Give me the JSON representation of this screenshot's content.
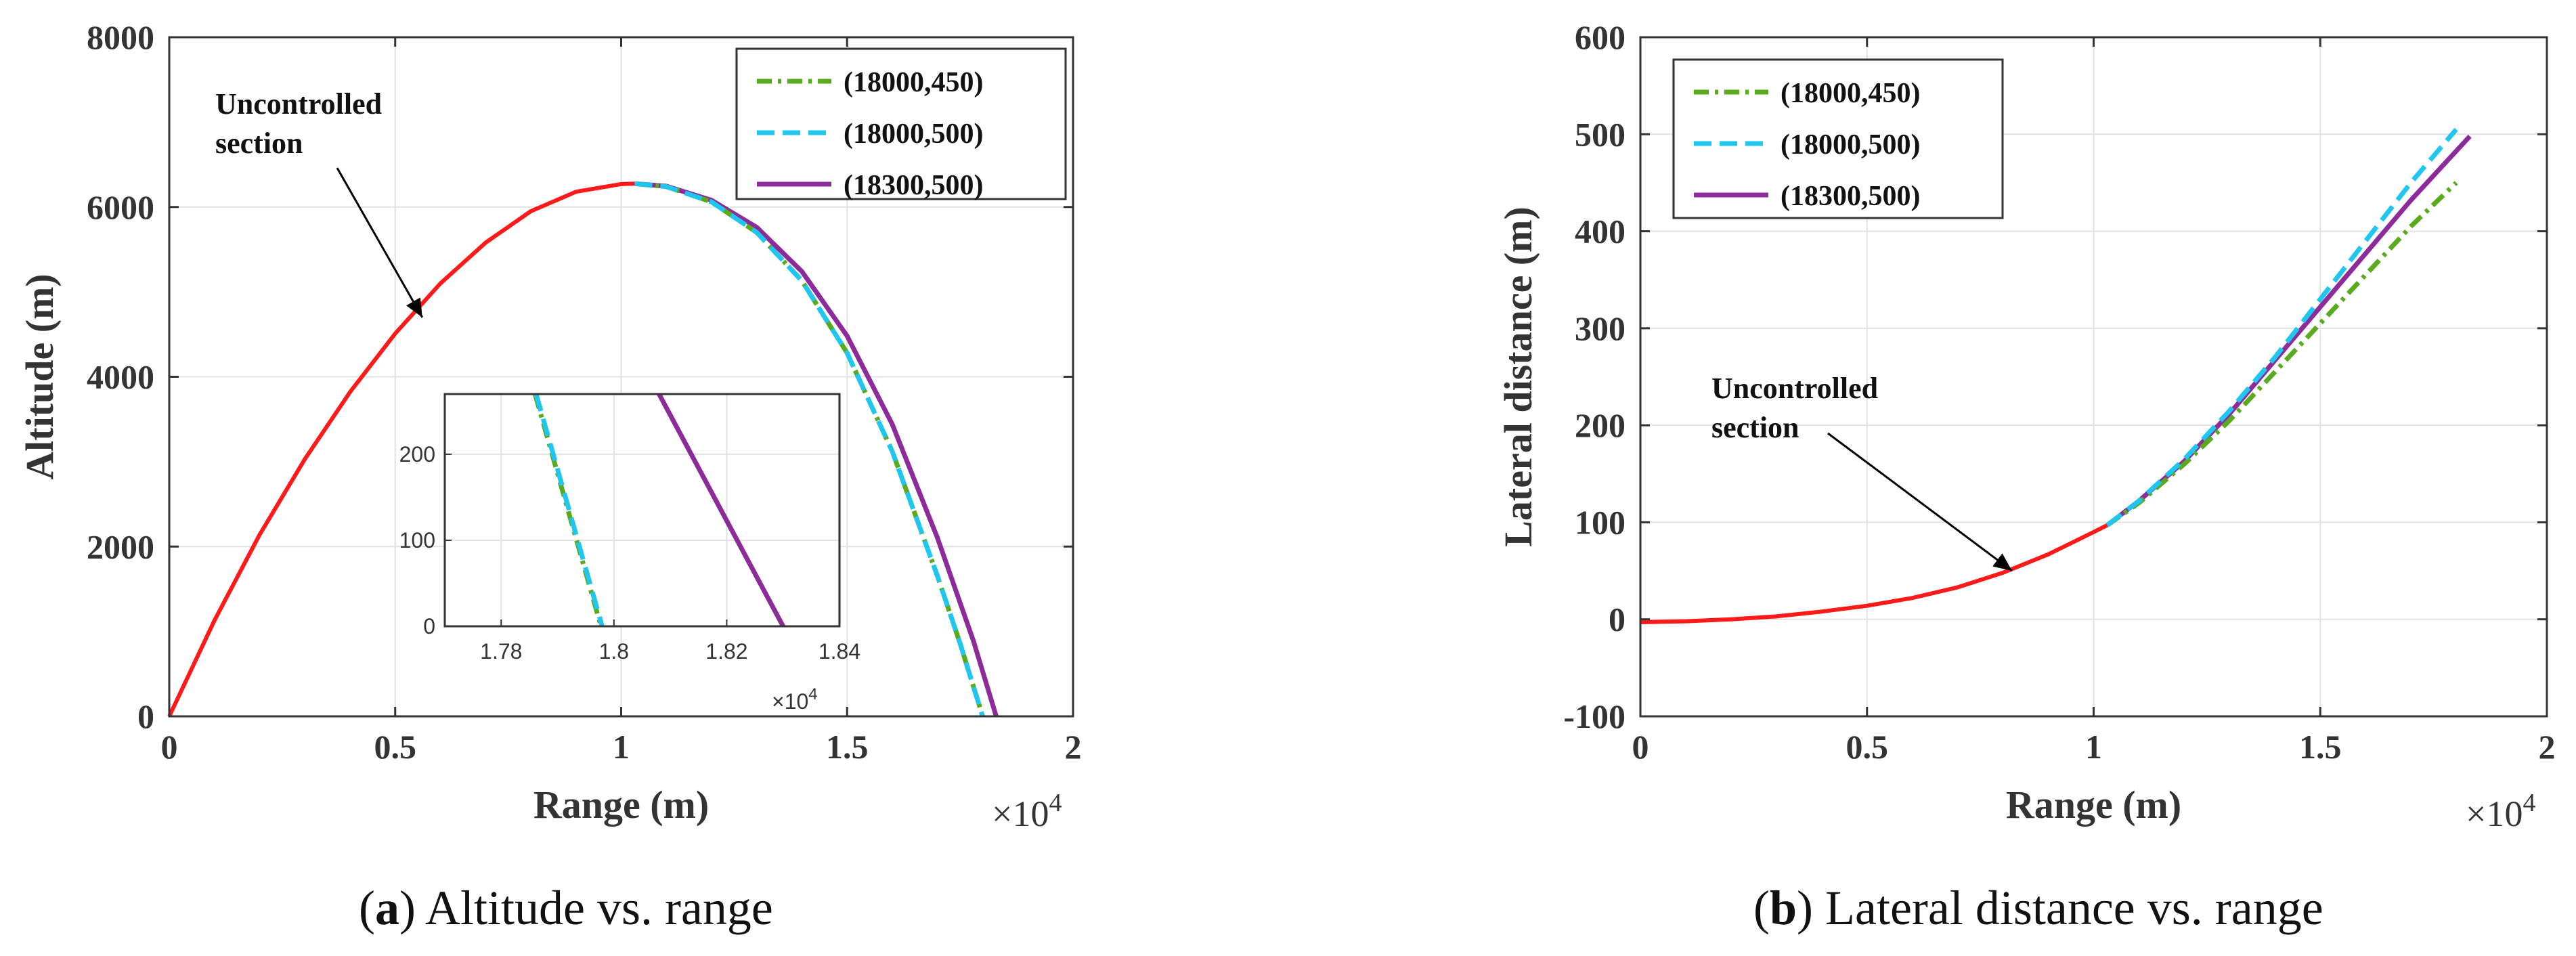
{
  "chart_data": [
    {
      "type": "line",
      "title": "",
      "xlabel": "Range (m)",
      "ylabel": "Altitude (m)",
      "xlim": [
        0,
        20000
      ],
      "ylim": [
        0,
        8000
      ],
      "xticks": [
        0,
        5000,
        10000,
        15000,
        20000
      ],
      "xtick_labels": [
        "0",
        "0.5",
        "1",
        "1.5",
        "2"
      ],
      "yticks": [
        0,
        2000,
        4000,
        6000,
        8000
      ],
      "ytick_labels": [
        "0",
        "2000",
        "4000",
        "6000",
        "8000"
      ],
      "x_exponent": "×10",
      "x_exponent_power": "4",
      "grid": true,
      "legend_position": "top-right",
      "annotation": {
        "line1": "Uncontrolled",
        "line2": "section",
        "arrow_to": [
          5600,
          4700
        ]
      },
      "uncontrolled": {
        "name": "Uncontrolled section",
        "color": "#ff1a1a",
        "x": [
          0,
          1000,
          2000,
          3000,
          4000,
          5000,
          6000,
          7000,
          8000,
          9000,
          10000,
          10300
        ],
        "y": [
          0,
          1130,
          2140,
          3030,
          3820,
          4510,
          5100,
          5580,
          5950,
          6180,
          6270,
          6275
        ]
      },
      "series": [
        {
          "name": "(18000,450)",
          "color": "#5aaa1e",
          "dash": "dashdot",
          "x": [
            10300,
            11000,
            12000,
            13000,
            14000,
            15000,
            16000,
            17000,
            17500,
            18000
          ],
          "y": [
            6275,
            6240,
            6060,
            5700,
            5130,
            4280,
            3120,
            1650,
            860,
            0
          ]
        },
        {
          "name": "(18000,500)",
          "color": "#1fc6f0",
          "dash": "dashed",
          "x": [
            10300,
            11000,
            12000,
            13000,
            14000,
            15000,
            16000,
            17000,
            17500,
            18000
          ],
          "y": [
            6275,
            6240,
            6060,
            5700,
            5130,
            4280,
            3120,
            1650,
            860,
            0
          ]
        },
        {
          "name": "(18300,500)",
          "color": "#8e2b9b",
          "dash": "solid",
          "x": [
            10300,
            11000,
            12000,
            13000,
            14000,
            15000,
            16000,
            17000,
            17800,
            18300
          ],
          "y": [
            6275,
            6245,
            6080,
            5760,
            5240,
            4480,
            3440,
            2100,
            880,
            0
          ]
        }
      ],
      "inset": {
        "xlim": [
          17700,
          18400
        ],
        "ylim": [
          0,
          270
        ],
        "xticks": [
          17800,
          18000,
          18200,
          18400
        ],
        "xtick_labels": [
          "1.78",
          "1.8",
          "1.82",
          "1.84"
        ],
        "yticks": [
          0,
          100,
          200
        ],
        "ytick_labels": [
          "0",
          "100",
          "200"
        ],
        "x_exponent": "×10",
        "x_exponent_power": "4",
        "series": [
          {
            "name": "(18000,450)",
            "x": [
              17860,
              17977
            ],
            "y": [
              270,
              0
            ]
          },
          {
            "name": "(18000,500)",
            "x": [
              17862,
              17979
            ],
            "y": [
              270,
              0
            ]
          },
          {
            "name": "(18300,500)",
            "x": [
              18080,
              18300
            ],
            "y": [
              270,
              0
            ]
          }
        ]
      }
    },
    {
      "type": "line",
      "title": "",
      "xlabel": "Range (m)",
      "ylabel": "Lateral distance (m)",
      "xlim": [
        0,
        20000
      ],
      "ylim": [
        -100,
        600
      ],
      "xticks": [
        0,
        5000,
        10000,
        15000,
        20000
      ],
      "xtick_labels": [
        "0",
        "0.5",
        "1",
        "1.5",
        "2"
      ],
      "yticks": [
        -100,
        0,
        100,
        200,
        300,
        400,
        500,
        600
      ],
      "ytick_labels": [
        "-100",
        "0",
        "100",
        "200",
        "300",
        "400",
        "500",
        "600"
      ],
      "x_exponent": "×10",
      "x_exponent_power": "4",
      "grid": true,
      "legend_position": "top-left",
      "annotation": {
        "line1": "Uncontrolled",
        "line2": "section",
        "arrow_to": [
          8200,
          50
        ]
      },
      "uncontrolled": {
        "name": "Uncontrolled section",
        "color": "#ff1a1a",
        "x": [
          0,
          1000,
          2000,
          3000,
          4000,
          5000,
          6000,
          7000,
          8000,
          9000,
          10000,
          10300
        ],
        "y": [
          -3,
          -2,
          0,
          3,
          8,
          14,
          22,
          33,
          48,
          67,
          90,
          97
        ]
      },
      "series": [
        {
          "name": "(18000,450)",
          "color": "#5aaa1e",
          "dash": "dashdot",
          "x": [
            10300,
            11000,
            12000,
            13000,
            14000,
            15000,
            16000,
            17000,
            18000
          ],
          "y": [
            97,
            120,
            160,
            205,
            255,
            305,
            355,
            405,
            450
          ]
        },
        {
          "name": "(18000,500)",
          "color": "#1fc6f0",
          "dash": "dashed",
          "x": [
            10300,
            11000,
            12000,
            13000,
            14000,
            15000,
            16000,
            17000,
            18000
          ],
          "y": [
            97,
            122,
            165,
            215,
            270,
            330,
            390,
            450,
            505
          ]
        },
        {
          "name": "(18300,500)",
          "color": "#8e2b9b",
          "dash": "solid",
          "x": [
            10300,
            11000,
            12000,
            13000,
            14000,
            15000,
            16000,
            17000,
            18300
          ],
          "y": [
            97,
            122,
            163,
            212,
            267,
            322,
            377,
            432,
            498
          ]
        }
      ]
    }
  ],
  "captions": {
    "a": {
      "letter": "a",
      "text": " Altitude vs. range"
    },
    "b": {
      "letter": "b",
      "text": " Lateral distance vs. range"
    }
  }
}
